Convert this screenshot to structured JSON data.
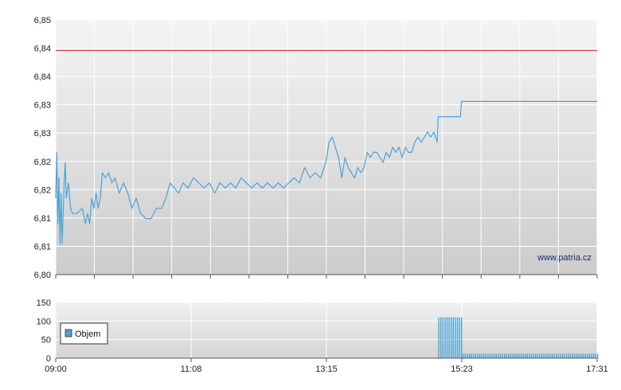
{
  "chart_data": [
    {
      "type": "line",
      "watermark": "www.patria.cz",
      "y_ticks": [
        "6,80",
        "6,81",
        "6,81",
        "6,82",
        "6,82",
        "6,83",
        "6,83",
        "6,84",
        "6,84",
        "6,85"
      ],
      "ylim": [
        6.8,
        6.85
      ],
      "xlim": [
        "09:00",
        "17:31"
      ],
      "grid": true,
      "reference_line": {
        "value": 6.844,
        "color": "#cc2222"
      },
      "series": [
        {
          "color": "#4aa3d8",
          "points": [
            [
              "09:00",
              6.815
            ],
            [
              "09:01",
              6.824
            ],
            [
              "09:02",
              6.81
            ],
            [
              "09:03",
              6.819
            ],
            [
              "09:04",
              6.806
            ],
            [
              "09:05",
              6.816
            ],
            [
              "09:06",
              6.806
            ],
            [
              "09:07",
              6.812
            ],
            [
              "09:08",
              6.818
            ],
            [
              "09:09",
              6.822
            ],
            [
              "09:10",
              6.815
            ],
            [
              "09:12",
              6.818
            ],
            [
              "09:14",
              6.813
            ],
            [
              "09:16",
              6.812
            ],
            [
              "09:20",
              6.812
            ],
            [
              "09:25",
              6.813
            ],
            [
              "09:28",
              6.81
            ],
            [
              "09:30",
              6.812
            ],
            [
              "09:32",
              6.81
            ],
            [
              "09:34",
              6.815
            ],
            [
              "09:36",
              6.813
            ],
            [
              "09:38",
              6.816
            ],
            [
              "09:40",
              6.813
            ],
            [
              "09:42",
              6.815
            ],
            [
              "09:44",
              6.82
            ],
            [
              "09:47",
              6.819
            ],
            [
              "09:50",
              6.82
            ],
            [
              "09:53",
              6.818
            ],
            [
              "09:56",
              6.819
            ],
            [
              "10:00",
              6.816
            ],
            [
              "10:04",
              6.818
            ],
            [
              "10:08",
              6.816
            ],
            [
              "10:12",
              6.813
            ],
            [
              "10:16",
              6.815
            ],
            [
              "10:20",
              6.812
            ],
            [
              "10:25",
              6.811
            ],
            [
              "10:30",
              6.811
            ],
            [
              "10:35",
              6.813
            ],
            [
              "10:40",
              6.813
            ],
            [
              "10:44",
              6.815
            ],
            [
              "10:48",
              6.818
            ],
            [
              "10:52",
              6.817
            ],
            [
              "10:56",
              6.816
            ],
            [
              "11:00",
              6.818
            ],
            [
              "11:05",
              6.817
            ],
            [
              "11:10",
              6.819
            ],
            [
              "11:15",
              6.818
            ],
            [
              "11:20",
              6.817
            ],
            [
              "11:25",
              6.818
            ],
            [
              "11:30",
              6.816
            ],
            [
              "11:35",
              6.818
            ],
            [
              "11:40",
              6.817
            ],
            [
              "11:45",
              6.818
            ],
            [
              "11:50",
              6.817
            ],
            [
              "11:55",
              6.819
            ],
            [
              "12:00",
              6.818
            ],
            [
              "12:05",
              6.817
            ],
            [
              "12:10",
              6.818
            ],
            [
              "12:15",
              6.817
            ],
            [
              "12:20",
              6.818
            ],
            [
              "12:25",
              6.817
            ],
            [
              "12:30",
              6.818
            ],
            [
              "12:35",
              6.817
            ],
            [
              "12:40",
              6.818
            ],
            [
              "12:45",
              6.819
            ],
            [
              "12:50",
              6.818
            ],
            [
              "12:55",
              6.821
            ],
            [
              "13:00",
              6.819
            ],
            [
              "13:05",
              6.82
            ],
            [
              "13:10",
              6.819
            ],
            [
              "13:15",
              6.822
            ],
            [
              "13:18",
              6.826
            ],
            [
              "13:21",
              6.827
            ],
            [
              "13:24",
              6.825
            ],
            [
              "13:27",
              6.823
            ],
            [
              "13:30",
              6.819
            ],
            [
              "13:33",
              6.823
            ],
            [
              "13:36",
              6.821
            ],
            [
              "13:39",
              6.82
            ],
            [
              "13:42",
              6.819
            ],
            [
              "13:45",
              6.821
            ],
            [
              "13:48",
              6.82
            ],
            [
              "13:51",
              6.821
            ],
            [
              "13:54",
              6.824
            ],
            [
              "13:57",
              6.823
            ],
            [
              "14:00",
              6.824
            ],
            [
              "14:03",
              6.824
            ],
            [
              "14:06",
              6.823
            ],
            [
              "14:09",
              6.822
            ],
            [
              "14:12",
              6.824
            ],
            [
              "14:15",
              6.823
            ],
            [
              "14:18",
              6.825
            ],
            [
              "14:21",
              6.824
            ],
            [
              "14:24",
              6.825
            ],
            [
              "14:27",
              6.823
            ],
            [
              "14:30",
              6.825
            ],
            [
              "14:33",
              6.824
            ],
            [
              "14:36",
              6.824
            ],
            [
              "14:39",
              6.826
            ],
            [
              "14:42",
              6.827
            ],
            [
              "14:45",
              6.826
            ],
            [
              "14:48",
              6.827
            ],
            [
              "14:51",
              6.828
            ],
            [
              "14:54",
              6.827
            ],
            [
              "14:57",
              6.828
            ],
            [
              "15:00",
              6.826
            ],
            [
              "15:01",
              6.831
            ],
            [
              "15:05",
              6.831
            ],
            [
              "15:10",
              6.831
            ],
            [
              "15:15",
              6.831
            ],
            [
              "15:20",
              6.831
            ],
            [
              "15:22",
              6.831
            ],
            [
              "15:23",
              6.834
            ],
            [
              "15:40",
              6.834
            ],
            [
              "16:00",
              6.834
            ],
            [
              "16:30",
              6.834
            ],
            [
              "17:00",
              6.834
            ],
            [
              "17:31",
              6.834
            ]
          ]
        }
      ]
    },
    {
      "type": "bar",
      "legend": {
        "label": "Objem",
        "placement": "left",
        "color": "#4aa3d8"
      },
      "y_ticks": [
        "0",
        "50",
        "100",
        "150"
      ],
      "ylim": [
        0,
        150
      ],
      "x_ticks": [
        "09:00",
        "11:08",
        "13:15",
        "15:23",
        "17:31"
      ],
      "xlim": [
        "09:00",
        "17:31"
      ],
      "grid": true,
      "bar_groups": [
        {
          "from": "15:01",
          "to": "15:24",
          "value": 110
        },
        {
          "from": "15:24",
          "to": "17:31",
          "value": 12
        }
      ]
    }
  ]
}
